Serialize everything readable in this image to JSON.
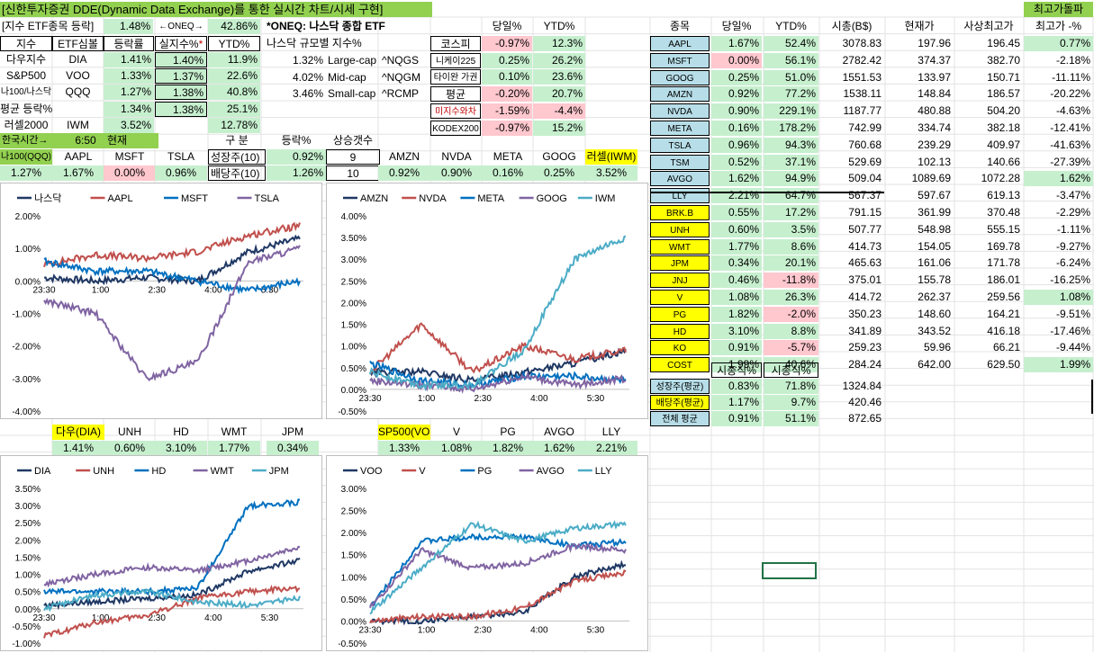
{
  "title": "[신한투자증권 DDE(Dynamic Data Exchange)를 통한 실시간 차트/시세 구현]",
  "top_right_label": "최고가돌파",
  "etf_header": {
    "label": "[지수 ETF종목 등락]",
    "pct": "1.48%",
    "oneq": "←ONEQ→",
    "oneq_pct": "42.86%"
  },
  "oneq_note": "*ONEQ: 나스닥 종합 ETF",
  "nasdaq_size_title": "나스닥 규모별 지수%",
  "nasdaq_sizes": [
    {
      "pct": "1.32%",
      "name": "Large-cap",
      "code": "^NQGS"
    },
    {
      "pct": "4.02%",
      "name": "Mid-cap",
      "code": "^NQGM"
    },
    {
      "pct": "3.46%",
      "name": "Small-cap",
      "code": "^RCMP"
    }
  ],
  "index_table": {
    "headers": [
      "지수",
      "ETF심볼",
      "등락률",
      "실지수%*",
      "YTD%"
    ],
    "rows": [
      {
        "name": "다우지수",
        "sym": "DIA",
        "chg": "1.41%",
        "real": "1.40%",
        "ytd": "11.9%"
      },
      {
        "name": "S&P500",
        "sym": "VOO",
        "chg": "1.33%",
        "real": "1.37%",
        "ytd": "22.6%"
      },
      {
        "name": "나100/나스닥",
        "sym": "QQQ",
        "chg": "1.27%",
        "real": "1.38%",
        "ytd": "40.8%"
      },
      {
        "name": "평균 등락%",
        "sym": "",
        "chg": "1.34%",
        "real": "1.38%",
        "ytd": "25.1%"
      },
      {
        "name": "러셀2000",
        "sym": "IWM",
        "chg": "3.52%",
        "real": "",
        "ytd": "12.78%"
      }
    ]
  },
  "time_row": {
    "label": "한국시간→",
    "time": "6:50",
    "now": "현재"
  },
  "growth_table": {
    "headers": [
      "구  분",
      "등락%",
      "상승갯수"
    ],
    "rows": [
      {
        "name": "성장주(10)",
        "chg": "0.92%",
        "up": "9"
      },
      {
        "name": "배당주(10)",
        "chg": "1.26%",
        "up": "10"
      }
    ]
  },
  "world_table": {
    "headers": [
      "",
      "당일%",
      "YTD%"
    ],
    "rows": [
      {
        "name": "코스피",
        "day": "-0.97%",
        "ytd": "12.3%"
      },
      {
        "name": "니케이225",
        "day": "0.25%",
        "ytd": "26.2%"
      },
      {
        "name": "타이완 가권",
        "day": "0.10%",
        "ytd": "23.6%"
      },
      {
        "name": "평균",
        "day": "-0.20%",
        "ytd": "20.7%"
      },
      {
        "name": "미지수와차",
        "day": "-1.59%",
        "ytd": "-4.4%"
      },
      {
        "name": "KODEX200",
        "day": "-0.97%",
        "ytd": "15.2%"
      }
    ]
  },
  "quote_row1": {
    "labels": [
      "나100(QQQ)",
      "AAPL",
      "MSFT",
      "TSLA",
      "",
      "AMZN",
      "NVDA",
      "META",
      "GOOG",
      "러셀(IWM)"
    ],
    "values": [
      "1.27%",
      "1.67%",
      "0.00%",
      "0.96%",
      "",
      "0.92%",
      "0.90%",
      "0.16%",
      "0.25%",
      "3.52%"
    ]
  },
  "quote_row2": {
    "labels": [
      "다우(DIA)",
      "UNH",
      "HD",
      "WMT",
      "JPM",
      "SP500(VOO)",
      "V",
      "PG",
      "AVGO",
      "LLY"
    ],
    "values": [
      "1.41%",
      "0.60%",
      "3.10%",
      "1.77%",
      "0.34%",
      "1.33%",
      "1.08%",
      "1.82%",
      "1.62%",
      "2.21%"
    ]
  },
  "stock_table": {
    "headers": [
      "종목",
      "당일%",
      "YTD%",
      "시총(B$)",
      "현재가",
      "사상최고가",
      "최고가 -%"
    ],
    "rows": [
      {
        "s": "AAPL",
        "d": "1.67%",
        "y": "52.4%",
        "m": "3078.83",
        "p": "197.96",
        "h": "196.45",
        "hp": "0.77%"
      },
      {
        "s": "MSFT",
        "d": "0.00%",
        "y": "56.1%",
        "m": "2782.42",
        "p": "374.37",
        "h": "382.70",
        "hp": "-2.18%"
      },
      {
        "s": "GOOG",
        "d": "0.25%",
        "y": "51.0%",
        "m": "1551.53",
        "p": "133.97",
        "h": "150.71",
        "hp": "-11.11%"
      },
      {
        "s": "AMZN",
        "d": "0.92%",
        "y": "77.2%",
        "m": "1538.11",
        "p": "148.84",
        "h": "186.57",
        "hp": "-20.22%"
      },
      {
        "s": "NVDA",
        "d": "0.90%",
        "y": "229.1%",
        "m": "1187.77",
        "p": "480.88",
        "h": "504.20",
        "hp": "-4.63%"
      },
      {
        "s": "META",
        "d": "0.16%",
        "y": "178.2%",
        "m": "742.99",
        "p": "334.74",
        "h": "382.18",
        "hp": "-12.41%"
      },
      {
        "s": "TSLA",
        "d": "0.96%",
        "y": "94.3%",
        "m": "760.68",
        "p": "239.29",
        "h": "409.97",
        "hp": "-41.63%"
      },
      {
        "s": "TSM",
        "d": "0.52%",
        "y": "37.1%",
        "m": "529.69",
        "p": "102.13",
        "h": "140.66",
        "hp": "-27.39%"
      },
      {
        "s": "AVGO",
        "d": "1.62%",
        "y": "94.9%",
        "m": "509.04",
        "p": "1089.69",
        "h": "1072.28",
        "hp": "1.62%"
      },
      {
        "s": "LLY",
        "d": "2.21%",
        "y": "64.7%",
        "m": "567.37",
        "p": "597.67",
        "h": "619.13",
        "hp": "-3.47%"
      },
      {
        "s": "BRK.B",
        "d": "0.55%",
        "y": "17.2%",
        "m": "791.15",
        "p": "361.99",
        "h": "370.48",
        "hp": "-2.29%"
      },
      {
        "s": "UNH",
        "d": "0.60%",
        "y": "3.5%",
        "m": "507.77",
        "p": "548.98",
        "h": "555.15",
        "hp": "-1.11%"
      },
      {
        "s": "WMT",
        "d": "1.77%",
        "y": "8.6%",
        "m": "414.73",
        "p": "154.05",
        "h": "169.78",
        "hp": "-9.27%"
      },
      {
        "s": "JPM",
        "d": "0.34%",
        "y": "20.1%",
        "m": "465.63",
        "p": "161.06",
        "h": "171.78",
        "hp": "-6.24%"
      },
      {
        "s": "JNJ",
        "d": "0.46%",
        "y": "-11.8%",
        "m": "375.01",
        "p": "155.78",
        "h": "186.01",
        "hp": "-16.25%"
      },
      {
        "s": "V",
        "d": "1.08%",
        "y": "26.3%",
        "m": "414.72",
        "p": "262.37",
        "h": "259.56",
        "hp": "1.08%"
      },
      {
        "s": "PG",
        "d": "1.82%",
        "y": "-2.0%",
        "m": "350.23",
        "p": "148.60",
        "h": "164.21",
        "hp": "-9.51%"
      },
      {
        "s": "HD",
        "d": "3.10%",
        "y": "8.8%",
        "m": "341.89",
        "p": "343.52",
        "h": "416.18",
        "hp": "-17.46%"
      },
      {
        "s": "KO",
        "d": "0.91%",
        "y": "-5.7%",
        "m": "259.23",
        "p": "59.96",
        "h": "66.21",
        "hp": "-9.44%"
      },
      {
        "s": "COST",
        "d": "1.99%",
        "y": "40.6%",
        "m": "284.24",
        "p": "642.00",
        "h": "629.50",
        "hp": "1.99%"
      }
    ]
  },
  "summary_table": {
    "headers": [
      "시총식%",
      "시총식%"
    ],
    "rows": [
      {
        "n": "성장주(평균)",
        "a": "0.83%",
        "b": "71.8%",
        "c": "1324.84"
      },
      {
        "n": "배당주(평균)",
        "a": "1.17%",
        "b": "9.7%",
        "c": "420.46"
      },
      {
        "n": "전체 평균",
        "a": "0.91%",
        "b": "51.1%",
        "c": "872.65"
      }
    ]
  },
  "colors": {
    "navy": "#1f3864",
    "red": "#c0504d",
    "blue": "#0070c0",
    "purple": "#8064a2",
    "teal": "#4bacc6"
  },
  "charts": [
    {
      "id": "c1",
      "legend": [
        "나스닥",
        "AAPL",
        "MSFT",
        "TSLA"
      ],
      "colors": [
        "#1f3864",
        "#c0504d",
        "#0070c0",
        "#8064a2"
      ],
      "yticks": [
        "2.00%",
        "1.00%",
        "0.00%",
        "-1.00%",
        "-2.00%",
        "-3.00%",
        "-4.00%"
      ],
      "ylim": [
        -4,
        2
      ],
      "xticks": [
        "23:30",
        "1:00",
        "2:30",
        "4:00",
        "5:30"
      ]
    },
    {
      "id": "c2",
      "legend": [
        "AMZN",
        "NVDA",
        "META",
        "GOOG",
        "IWM"
      ],
      "colors": [
        "#1f3864",
        "#c0504d",
        "#0070c0",
        "#8064a2",
        "#4bacc6"
      ],
      "yticks": [
        "4.00%",
        "3.50%",
        "3.00%",
        "2.50%",
        "2.00%",
        "1.50%",
        "1.00%",
        "0.50%",
        "0.00%",
        "-0.50%"
      ],
      "ylim": [
        -0.5,
        4
      ],
      "xticks": [
        "23:30",
        "1:00",
        "2:30",
        "4:00",
        "5:30"
      ]
    },
    {
      "id": "c3",
      "legend": [
        "DIA",
        "UNH",
        "HD",
        "WMT",
        "JPM"
      ],
      "colors": [
        "#1f3864",
        "#c0504d",
        "#0070c0",
        "#8064a2",
        "#4bacc6"
      ],
      "yticks": [
        "3.50%",
        "3.00%",
        "2.50%",
        "2.00%",
        "1.50%",
        "1.00%",
        "0.50%",
        "0.00%",
        "-0.50%",
        "-1.00%"
      ],
      "ylim": [
        -1,
        3.5
      ],
      "xticks": [
        "23:30",
        "1:00",
        "2:30",
        "4:00",
        "5:30"
      ]
    },
    {
      "id": "c4",
      "legend": [
        "VOO",
        "V",
        "PG",
        "AVGO",
        "LLY"
      ],
      "colors": [
        "#1f3864",
        "#c0504d",
        "#0070c0",
        "#8064a2",
        "#4bacc6"
      ],
      "yticks": [
        "3.00%",
        "2.50%",
        "2.00%",
        "1.50%",
        "1.00%",
        "0.50%",
        "0.00%",
        "-0.50%"
      ],
      "ylim": [
        -0.5,
        3
      ],
      "xticks": [
        "23:30",
        "1:00",
        "2:30",
        "4:00",
        "5:30"
      ]
    }
  ],
  "chart_data": [
    {
      "type": "line",
      "x": [
        "23:30",
        "1:00",
        "2:30",
        "4:00",
        "5:30",
        "6:50"
      ],
      "series": [
        {
          "name": "나스닥",
          "values": [
            0.1,
            0.0,
            0.1,
            0.0,
            0.9,
            1.3
          ]
        },
        {
          "name": "AAPL",
          "values": [
            0.5,
            0.8,
            0.7,
            0.9,
            1.4,
            1.7
          ]
        },
        {
          "name": "MSFT",
          "values": [
            0.6,
            0.3,
            0.3,
            0.0,
            -0.3,
            0.0
          ]
        },
        {
          "name": "TSLA",
          "values": [
            -0.6,
            -1.0,
            -3.0,
            -2.5,
            0.6,
            1.0
          ]
        }
      ]
    },
    {
      "type": "line",
      "x": [
        "23:30",
        "1:00",
        "2:30",
        "4:00",
        "5:30",
        "6:50"
      ],
      "series": [
        {
          "name": "AMZN",
          "values": [
            0.4,
            0.4,
            0.2,
            0.4,
            0.6,
            0.9
          ]
        },
        {
          "name": "NVDA",
          "values": [
            0.4,
            1.5,
            0.4,
            1.0,
            0.7,
            0.9
          ]
        },
        {
          "name": "META",
          "values": [
            0.6,
            0.2,
            0.1,
            0.3,
            0.3,
            0.2
          ]
        },
        {
          "name": "GOOG",
          "values": [
            0.2,
            0.1,
            0.0,
            0.3,
            0.1,
            0.25
          ]
        },
        {
          "name": "IWM",
          "values": [
            0.4,
            0.1,
            0.1,
            0.9,
            3.0,
            3.5
          ]
        }
      ]
    },
    {
      "type": "line",
      "x": [
        "23:30",
        "1:00",
        "2:30",
        "4:00",
        "5:30",
        "6:50"
      ],
      "series": [
        {
          "name": "DIA",
          "values": [
            0.1,
            0.2,
            0.3,
            0.4,
            1.1,
            1.4
          ]
        },
        {
          "name": "UNH",
          "values": [
            -0.8,
            -0.4,
            -0.2,
            0.3,
            0.5,
            0.6
          ]
        },
        {
          "name": "HD",
          "values": [
            0.5,
            0.5,
            0.5,
            0.6,
            3.0,
            3.1
          ]
        },
        {
          "name": "WMT",
          "values": [
            0.7,
            1.0,
            1.2,
            1.1,
            1.4,
            1.8
          ]
        },
        {
          "name": "JPM",
          "values": [
            0.0,
            0.4,
            0.5,
            0.2,
            0.1,
            0.3
          ]
        }
      ]
    },
    {
      "type": "line",
      "x": [
        "23:30",
        "1:00",
        "2:30",
        "4:00",
        "5:30",
        "6:50"
      ],
      "series": [
        {
          "name": "VOO",
          "values": [
            0.0,
            0.0,
            0.1,
            0.2,
            1.0,
            1.3
          ]
        },
        {
          "name": "V",
          "values": [
            0.0,
            0.1,
            0.1,
            0.3,
            0.9,
            1.1
          ]
        },
        {
          "name": "PG",
          "values": [
            0.3,
            1.8,
            1.9,
            1.9,
            1.7,
            1.8
          ]
        },
        {
          "name": "AVGO",
          "values": [
            0.3,
            1.6,
            1.2,
            1.3,
            1.7,
            1.6
          ]
        },
        {
          "name": "LLY",
          "values": [
            0.2,
            1.2,
            2.2,
            1.8,
            2.1,
            2.2
          ]
        }
      ]
    }
  ]
}
